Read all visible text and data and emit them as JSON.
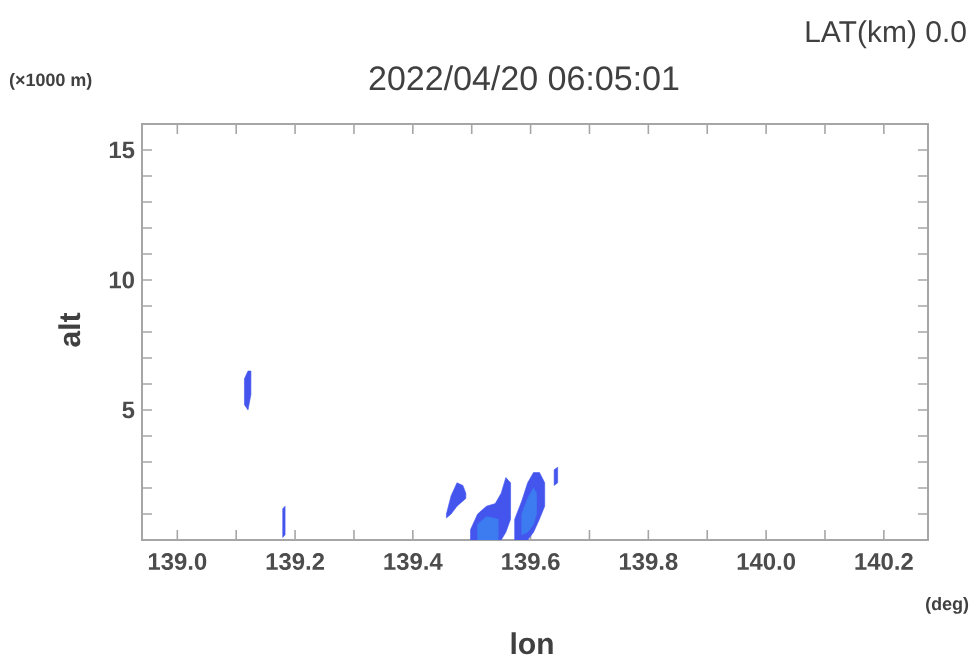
{
  "chart_data": {
    "type": "area",
    "title": "2022/04/20 06:05:01",
    "subtitle": "LAT(km) 0.0",
    "xlabel": "lon",
    "ylabel": "alt",
    "annotations": [
      "(×1000 m)",
      "(deg)"
    ],
    "xlim": [
      138.94,
      140.275
    ],
    "ylim": [
      0,
      16
    ],
    "xticks": [
      {
        "value": 139.0,
        "label": "139.0"
      },
      {
        "value": 139.1,
        "label": null
      },
      {
        "value": 139.2,
        "label": "139.2"
      },
      {
        "value": 139.3,
        "label": null
      },
      {
        "value": 139.4,
        "label": "139.4"
      },
      {
        "value": 139.5,
        "label": null
      },
      {
        "value": 139.6,
        "label": "139.6"
      },
      {
        "value": 139.7,
        "label": null
      },
      {
        "value": 139.8,
        "label": "139.8"
      },
      {
        "value": 139.9,
        "label": null
      },
      {
        "value": 140.0,
        "label": "140.0"
      },
      {
        "value": 140.1,
        "label": null
      },
      {
        "value": 140.2,
        "label": "140.2"
      }
    ],
    "yticks": [
      {
        "value": 1,
        "label": null
      },
      {
        "value": 2,
        "label": null
      },
      {
        "value": 3,
        "label": null
      },
      {
        "value": 4,
        "label": null
      },
      5,
      {
        "value": 6,
        "label": null
      },
      {
        "value": 7,
        "label": null
      },
      {
        "value": 8,
        "label": null
      },
      {
        "value": 9,
        "label": null
      },
      10,
      {
        "value": 11,
        "label": null
      },
      {
        "value": 12,
        "label": null
      },
      {
        "value": 13,
        "label": null
      },
      {
        "value": 14,
        "label": null
      },
      15
    ],
    "grid": false,
    "series": [
      {
        "color": "#4455ee",
        "x": [
          139.114,
          139.12,
          139.125,
          139.125,
          139.12,
          139.114,
          139.114
        ],
        "values": [
          6.2,
          6.5,
          6.5,
          5.6,
          5.0,
          5.2,
          6.2
        ]
      },
      {
        "color": "#4455ee",
        "x": [
          139.179,
          139.183,
          139.183,
          139.179,
          139.179
        ],
        "values": [
          1.2,
          1.3,
          0.2,
          0.1,
          1.2
        ]
      },
      {
        "color": "#4455ee",
        "x": [
          139.457,
          139.465,
          139.475,
          139.485,
          139.49,
          139.49,
          139.485,
          139.475,
          139.465,
          139.457,
          139.457
        ],
        "values": [
          1.0,
          1.7,
          2.2,
          2.1,
          1.8,
          1.6,
          1.5,
          1.3,
          1.0,
          0.85,
          1.0
        ]
      },
      {
        "color": "#4455ee",
        "x": [
          139.498,
          139.51,
          139.525,
          139.54,
          139.55,
          139.558,
          139.566,
          139.566,
          139.558,
          139.55,
          139.498,
          139.498
        ],
        "values": [
          0.4,
          1.0,
          1.3,
          1.4,
          1.8,
          2.4,
          2.2,
          0.8,
          0.3,
          0,
          0,
          0.4
        ]
      },
      {
        "color": "#3c7cf0",
        "x": [
          139.51,
          139.525,
          139.545,
          139.545,
          139.51,
          139.51
        ],
        "values": [
          0.6,
          0.9,
          0.8,
          0,
          0,
          0.6
        ]
      },
      {
        "color": "#4455ee",
        "x": [
          139.573,
          139.585,
          139.595,
          139.605,
          139.615,
          139.624,
          139.624,
          139.615,
          139.605,
          139.595,
          139.573,
          139.573
        ],
        "values": [
          0.8,
          1.5,
          2.2,
          2.6,
          2.6,
          2.2,
          1.3,
          0.8,
          0.3,
          0,
          0,
          0.8
        ]
      },
      {
        "color": "#3c7cf0",
        "x": [
          139.585,
          139.595,
          139.605,
          139.61,
          139.61,
          139.605,
          139.595,
          139.585,
          139.585
        ],
        "values": [
          1.0,
          1.6,
          2.0,
          1.8,
          1.0,
          0.6,
          0.3,
          0.2,
          1.0
        ]
      },
      {
        "color": "#4455ee",
        "x": [
          139.64,
          139.646,
          139.646,
          139.64,
          139.64
        ],
        "values": [
          2.7,
          2.8,
          2.2,
          2.1,
          2.7
        ]
      }
    ]
  }
}
